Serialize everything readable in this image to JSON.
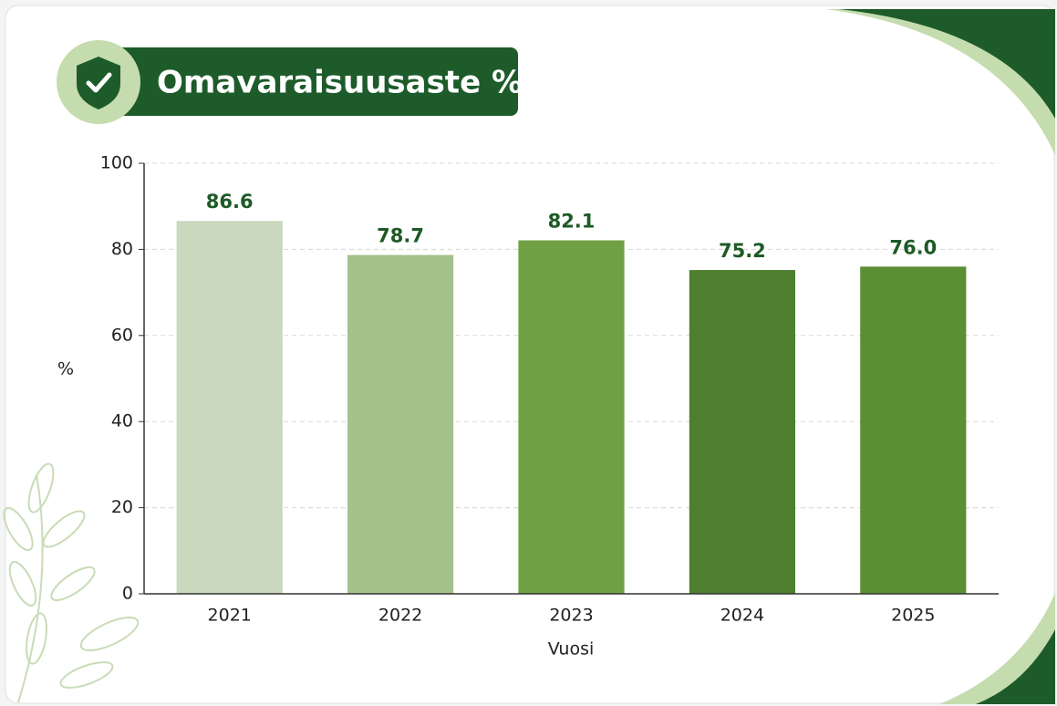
{
  "chart_data": {
    "type": "bar",
    "title": "Omavaraisuusaste %",
    "x_label": "Vuosi",
    "y_label": "%",
    "categories": [
      "2021",
      "2022",
      "2023",
      "2024",
      "2025"
    ],
    "values": [
      86.6,
      78.7,
      82.1,
      75.2,
      76.0
    ],
    "value_labels": [
      "86.6",
      "78.7",
      "82.1",
      "75.2",
      "76.0"
    ],
    "colors": [
      "#c8d9bd",
      "#a3c28c",
      "#6fa144",
      "#4d7f2f",
      "#5a8f34"
    ],
    "ylim": [
      0,
      100
    ],
    "yticks": [
      0,
      20,
      40,
      60,
      80,
      100
    ],
    "grid": true
  }
}
